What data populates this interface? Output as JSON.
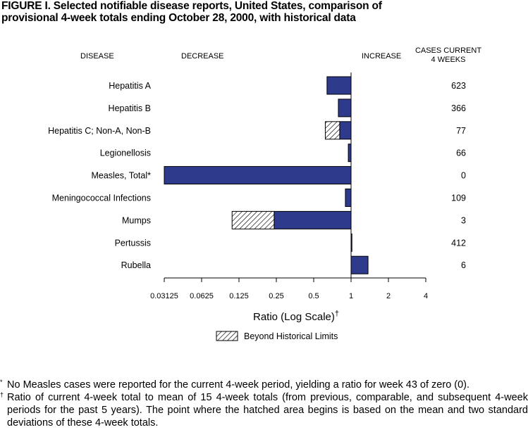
{
  "figure": {
    "title_line1": "FIGURE I.  Selected notifiable disease reports, United States, comparison of",
    "title_line2": "provisional 4-week totals ending October 28, 2000, with historical data"
  },
  "chart_data": {
    "type": "bar",
    "orientation": "horizontal",
    "scale": "log2",
    "xlim": [
      0.03125,
      4
    ],
    "xticks": [
      "0.03125",
      "0.0625",
      "0.125",
      "0.25",
      "0.5",
      "1",
      "2",
      "4"
    ],
    "xlabel": "Ratio (Log Scale)",
    "xlabel_mark": "†",
    "headers": {
      "disease": "DISEASE",
      "decrease": "DECREASE",
      "increase": "INCREASE",
      "cases_line1": "CASES CURRENT",
      "cases_line2": "4 WEEKS"
    },
    "categories": [
      "Hepatitis A",
      "Hepatitis B",
      "Hepatitis C; Non-A, Non-B",
      "Legionellosis",
      "Measles, Total*",
      "Meningococcal Infections",
      "Mumps",
      "Pertussis",
      "Rubella"
    ],
    "values": [
      0.64,
      0.79,
      0.62,
      0.95,
      0.03125,
      0.9,
      0.11,
      1.01,
      1.37
    ],
    "hatch_from": [
      null,
      null,
      0.81,
      null,
      null,
      null,
      0.24,
      null,
      null
    ],
    "cases": [
      "623",
      "366",
      "77",
      "66",
      "0",
      "109",
      "3",
      "412",
      "6"
    ],
    "legend": {
      "label": "Beyond Historical Limits"
    },
    "colors": {
      "bar": "#2e3a8c",
      "outline": "#000000"
    }
  },
  "footnotes": [
    {
      "mark": "*",
      "text": "No Measles cases were reported for the current 4-week period, yielding a ratio for week 43 of zero (0)."
    },
    {
      "mark": "†",
      "text": "Ratio of current 4-week total to mean of 15 4-week totals (from previous, comparable, and subsequent 4-week periods for the past 5 years). The point where the hatched area begins is based on the mean and two standard deviations of these 4-week totals."
    }
  ]
}
